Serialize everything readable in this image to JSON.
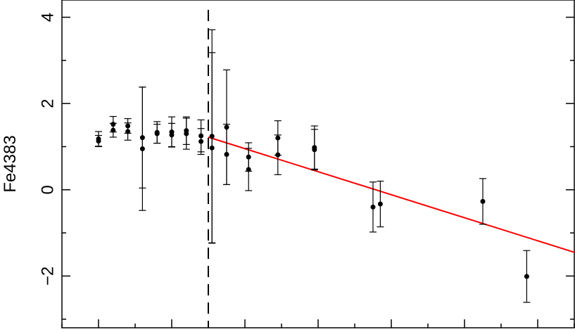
{
  "chart_data": {
    "type": "scatter",
    "ylabel": "Fe4383",
    "xlabel": "",
    "ylim": [
      -3.2,
      4.4
    ],
    "yticks": [
      -2,
      0,
      2,
      4
    ],
    "ytick_labels": [
      "−2",
      "0",
      "2",
      "4"
    ],
    "xlim": [
      0,
      14
    ],
    "xticks_minor_count": 14,
    "grid": false,
    "series": [
      {
        "points": [
          {
            "x": 1.0,
            "y": 1.18,
            "err": 0.17
          },
          {
            "x": 1.0,
            "y": 1.13,
            "err": 0.13
          },
          {
            "x": 1.4,
            "y": 1.52,
            "err": 0.18
          },
          {
            "x": 1.4,
            "y": 1.38,
            "err": 0.16
          },
          {
            "x": 1.8,
            "y": 1.48,
            "err": 0.17
          },
          {
            "x": 1.8,
            "y": 1.35,
            "err": 0.2
          },
          {
            "x": 2.2,
            "y": 1.21,
            "err": 1.17
          },
          {
            "x": 2.2,
            "y": 0.95,
            "err": 1.43
          },
          {
            "x": 2.6,
            "y": 1.33,
            "err": 0.25
          },
          {
            "x": 2.6,
            "y": 1.3,
            "err": 0.22
          },
          {
            "x": 3.0,
            "y": 1.34,
            "err": 0.35
          },
          {
            "x": 3.0,
            "y": 1.27,
            "err": 0.27
          },
          {
            "x": 3.4,
            "y": 1.37,
            "err": 0.32
          },
          {
            "x": 3.4,
            "y": 1.3,
            "err": 0.36
          },
          {
            "x": 3.8,
            "y": 1.25,
            "err": 0.37
          },
          {
            "x": 3.8,
            "y": 1.12,
            "err": 0.3
          },
          {
            "x": 4.1,
            "y": 1.24,
            "err": 2.47
          },
          {
            "x": 4.1,
            "y": 0.97,
            "err": 2.21
          },
          {
            "x": 4.5,
            "y": 1.45,
            "err": 1.33
          },
          {
            "x": 4.5,
            "y": 0.82,
            "err": 0.7
          },
          {
            "x": 5.1,
            "y": 0.76,
            "err": 0.33
          },
          {
            "x": 5.1,
            "y": 0.47,
            "err": 0.49
          },
          {
            "x": 5.9,
            "y": 1.2,
            "err": 0.4
          },
          {
            "x": 5.9,
            "y": 0.81,
            "err": 0.46
          },
          {
            "x": 6.9,
            "y": 0.98,
            "err": 0.5
          },
          {
            "x": 6.9,
            "y": 0.93,
            "err": 0.47
          },
          {
            "x": 8.5,
            "y": -0.4,
            "err": 0.58
          },
          {
            "x": 8.7,
            "y": -0.33,
            "err": 0.53
          },
          {
            "x": 11.5,
            "y": -0.27,
            "err": 0.53
          },
          {
            "x": 12.7,
            "y": -2.01,
            "err": 0.6
          }
        ]
      }
    ],
    "vertical_line": {
      "x": 4.0,
      "style": "dashed",
      "color": "#000000"
    },
    "fit_line": {
      "x": [
        4.0,
        14.0
      ],
      "y": [
        1.22,
        -1.45
      ],
      "color": "#ff0000"
    }
  }
}
